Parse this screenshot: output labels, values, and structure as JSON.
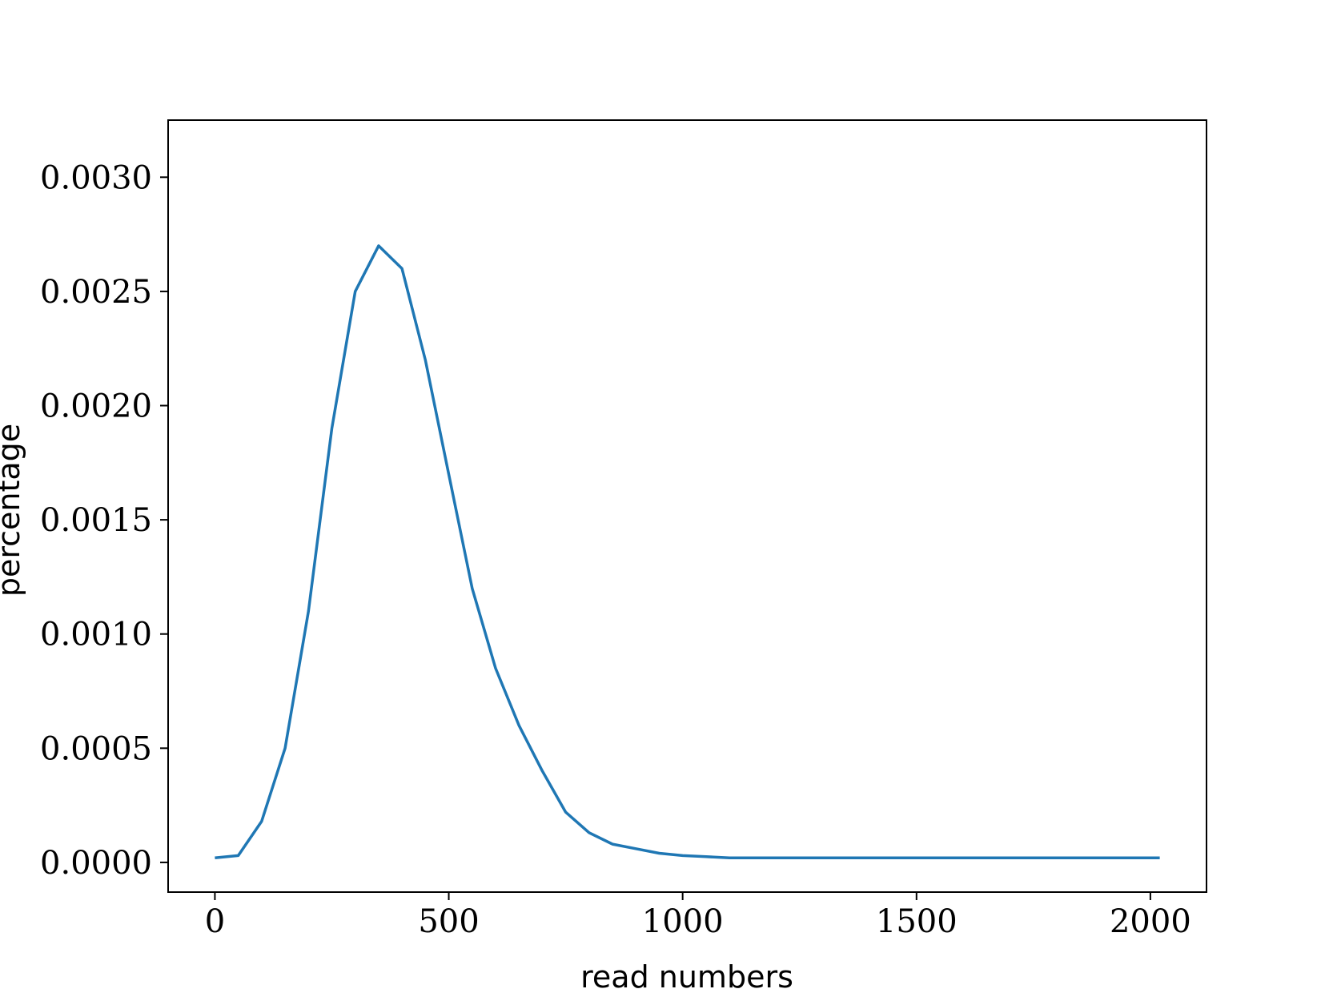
{
  "chart_data": {
    "type": "line",
    "title": "",
    "xlabel": "read numbers",
    "ylabel": "percentage",
    "xlim": [
      -100,
      2120
    ],
    "ylim": [
      -0.00013,
      0.00325
    ],
    "xticks": [
      0,
      500,
      1000,
      1500,
      2000
    ],
    "xtick_labels": [
      "0",
      "500",
      "1000",
      "1500",
      "2000"
    ],
    "yticks": [
      0.0,
      0.0005,
      0.001,
      0.0015,
      0.002,
      0.0025,
      0.003
    ],
    "ytick_labels": [
      "0.0000",
      "0.0005",
      "0.0010",
      "0.0015",
      "0.0020",
      "0.0025",
      "0.0030"
    ],
    "grid": false,
    "legend": "none",
    "series": [
      {
        "color": "#1f77b4",
        "x": [
          0,
          50,
          100,
          150,
          200,
          250,
          300,
          350,
          400,
          450,
          500,
          550,
          600,
          650,
          700,
          750,
          800,
          850,
          900,
          950,
          1000,
          1050,
          1100,
          1150,
          1200,
          1250,
          1300,
          1350,
          1400,
          1500,
          1600,
          1700,
          1800,
          1900,
          2020
        ],
        "y": [
          2e-05,
          3e-05,
          0.00018,
          0.0005,
          0.0011,
          0.0019,
          0.0025,
          0.0027,
          0.0026,
          0.0022,
          0.0017,
          0.0012,
          0.00085,
          0.0006,
          0.0004,
          0.00022,
          0.00013,
          8e-05,
          6e-05,
          4e-05,
          3e-05,
          2.5e-05,
          2e-05,
          2e-05,
          2e-05,
          2e-05,
          2e-05,
          2e-05,
          2e-05,
          2e-05,
          2e-05,
          2e-05,
          2e-05,
          2e-05,
          2e-05
        ]
      }
    ]
  }
}
